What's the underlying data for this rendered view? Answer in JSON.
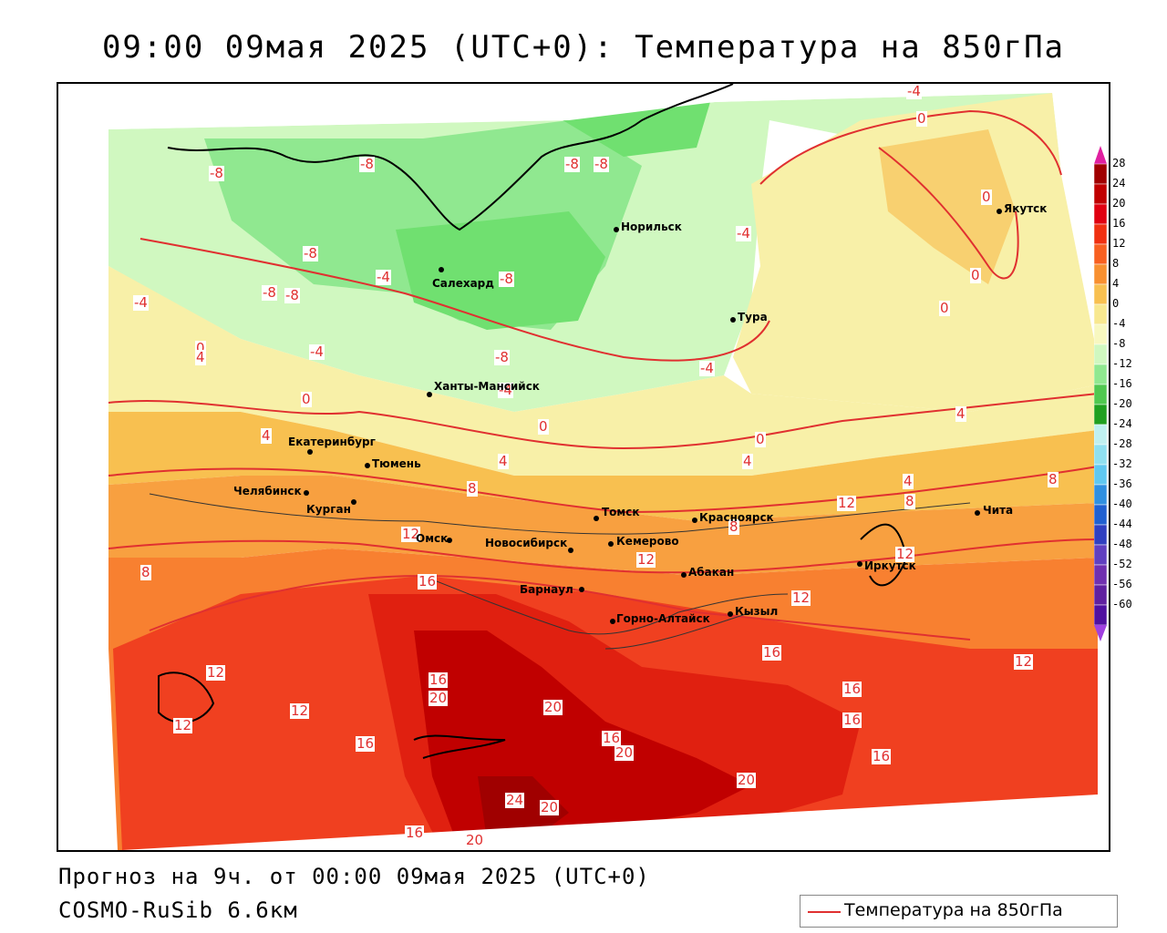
{
  "title": "09:00 09мая 2025 (UTC+0): Температура на 850гПа",
  "footer": {
    "forecast": "Прогноз на 9ч. от 00:00 09мая 2025 (UTC+0)",
    "model": "COSMO-RuSib 6.6км"
  },
  "legend": {
    "label": "Температура на 850гПа",
    "line_color": "#e03030"
  },
  "colorbar": {
    "labels": [
      "28",
      "24",
      "20",
      "16",
      "12",
      "8",
      "4",
      "0",
      "-4",
      "-8",
      "-12",
      "-16",
      "-20",
      "-24",
      "-28",
      "-32",
      "-36",
      "-40",
      "-44",
      "-48",
      "-52",
      "-56",
      "-60"
    ],
    "colors": [
      "#a00000",
      "#c00000",
      "#e00010",
      "#f03010",
      "#f86020",
      "#f89030",
      "#f8c050",
      "#f8e890",
      "#f8f8c0",
      "#d0f8c0",
      "#90e890",
      "#50c850",
      "#20a020",
      "#c0f0f0",
      "#90e0f0",
      "#60c8f0",
      "#3090e0",
      "#2060d0",
      "#3040c0",
      "#6040c0",
      "#7030b0",
      "#6020a0",
      "#5010a0"
    ],
    "top_color": "#e020a0",
    "bottom_color": "#a040e0"
  },
  "cities": [
    {
      "name": "Норильск"
    },
    {
      "name": "Якутск"
    },
    {
      "name": "Салехард"
    },
    {
      "name": "Тура"
    },
    {
      "name": "Ханты-Мансийск"
    },
    {
      "name": "Екатеринбург"
    },
    {
      "name": "Тюмень"
    },
    {
      "name": "Челябинск"
    },
    {
      "name": "Курган"
    },
    {
      "name": "Томск"
    },
    {
      "name": "Красноярск"
    },
    {
      "name": "Омск"
    },
    {
      "name": "Новосибирск"
    },
    {
      "name": "Кемерово"
    },
    {
      "name": "Абакан"
    },
    {
      "name": "Барнаул"
    },
    {
      "name": "Горно-Алтайск"
    },
    {
      "name": "Кызыл"
    },
    {
      "name": "Иркутск"
    },
    {
      "name": "Чита"
    }
  ],
  "contour_labels": [
    "-8",
    "-8",
    "-8",
    "-8",
    "-8",
    "-4",
    "-8",
    "-8",
    "-4",
    "-8",
    "-4",
    "-4",
    "0",
    "0",
    "-4",
    "-8",
    "-4",
    "0",
    "0",
    "0",
    "0",
    "0",
    "4",
    "0",
    "4",
    "4",
    "4",
    "-4",
    "4",
    "8",
    "12",
    "4",
    "8",
    "8",
    "12",
    "8",
    "12",
    "8",
    "16",
    "12",
    "16",
    "12",
    "12",
    "12",
    "16",
    "20",
    "20",
    "24",
    "20",
    "16",
    "20",
    "16",
    "16",
    "20",
    "16",
    "20",
    "12",
    "12",
    "16",
    "16"
  ]
}
